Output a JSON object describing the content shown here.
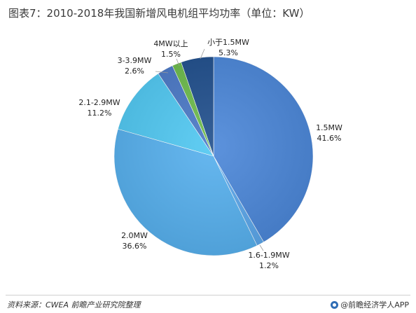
{
  "chart_data": {
    "type": "pie",
    "title": "图表7：2010-2018年我国新增风电机组平均功率（单位：KW）",
    "slices": [
      {
        "name": "1.5MW",
        "value": 41.6,
        "display": "41.6%",
        "color": "#4a86d8"
      },
      {
        "name": "1.6-1.9MW",
        "value": 1.2,
        "display": "1.2%",
        "color": "#5aa6ea"
      },
      {
        "name": "2.0MW",
        "value": 36.6,
        "display": "36.6%",
        "color": "#56b0ee"
      },
      {
        "name": "2.1-2.9MW",
        "value": 11.2,
        "display": "11.2%",
        "color": "#50c8f2"
      },
      {
        "name": "3-3.9MW",
        "value": 2.6,
        "display": "2.6%",
        "color": "#4a78c6"
      },
      {
        "name": "4MW以上",
        "value": 1.5,
        "display": "1.5%",
        "color": "#6cbb4a"
      },
      {
        "name": "小于1.5MW",
        "value": 5.3,
        "display": "5.3%",
        "color": "#1f4e8c"
      }
    ]
  },
  "footer": {
    "source": "资料来源：CWEA  前瞻产业研究院整理",
    "brand": "@前瞻经济学人APP"
  }
}
